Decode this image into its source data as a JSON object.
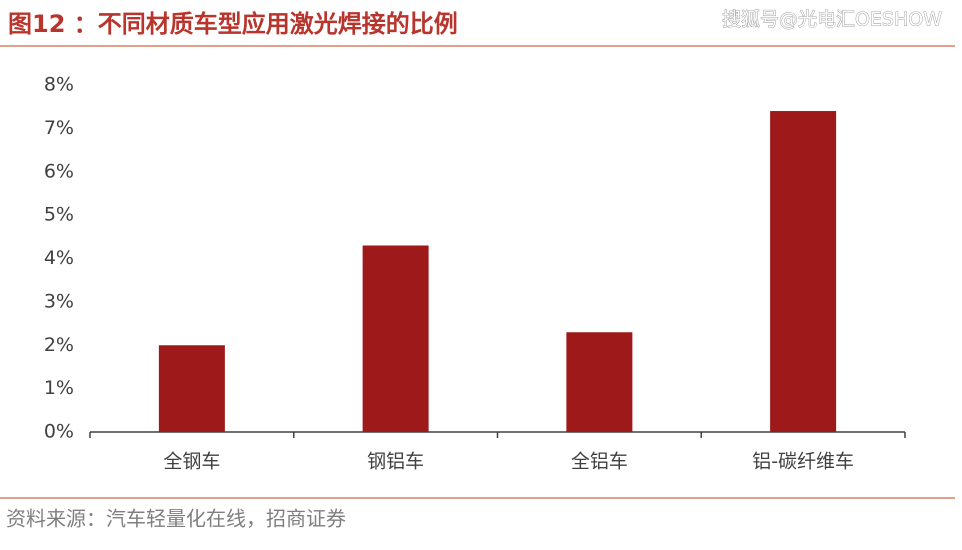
{
  "chart_data": {
    "type": "bar",
    "title": "图12 ：不同材质车型应用激光焊接的比例",
    "watermark": "搜狐号@光电汇OESHOW",
    "source": "资料来源：汽车轻量化在线，招商证券",
    "categories": [
      "全钢车",
      "钢铝车",
      "全铝车",
      "铝-碳纤维车"
    ],
    "values": [
      2.0,
      4.3,
      2.3,
      7.4
    ],
    "color": "#9e1a1a",
    "ylim": [
      0,
      8
    ],
    "yticks": [
      {
        "value": 0,
        "label": "0%"
      },
      {
        "value": 1,
        "label": "1%"
      },
      {
        "value": 2,
        "label": "2%"
      },
      {
        "value": 3,
        "label": "3%"
      },
      {
        "value": 4,
        "label": "4%"
      },
      {
        "value": 5,
        "label": "5%"
      },
      {
        "value": 6,
        "label": "6%"
      },
      {
        "value": 7,
        "label": "7%"
      },
      {
        "value": 8,
        "label": "8%"
      }
    ],
    "grid": false
  }
}
